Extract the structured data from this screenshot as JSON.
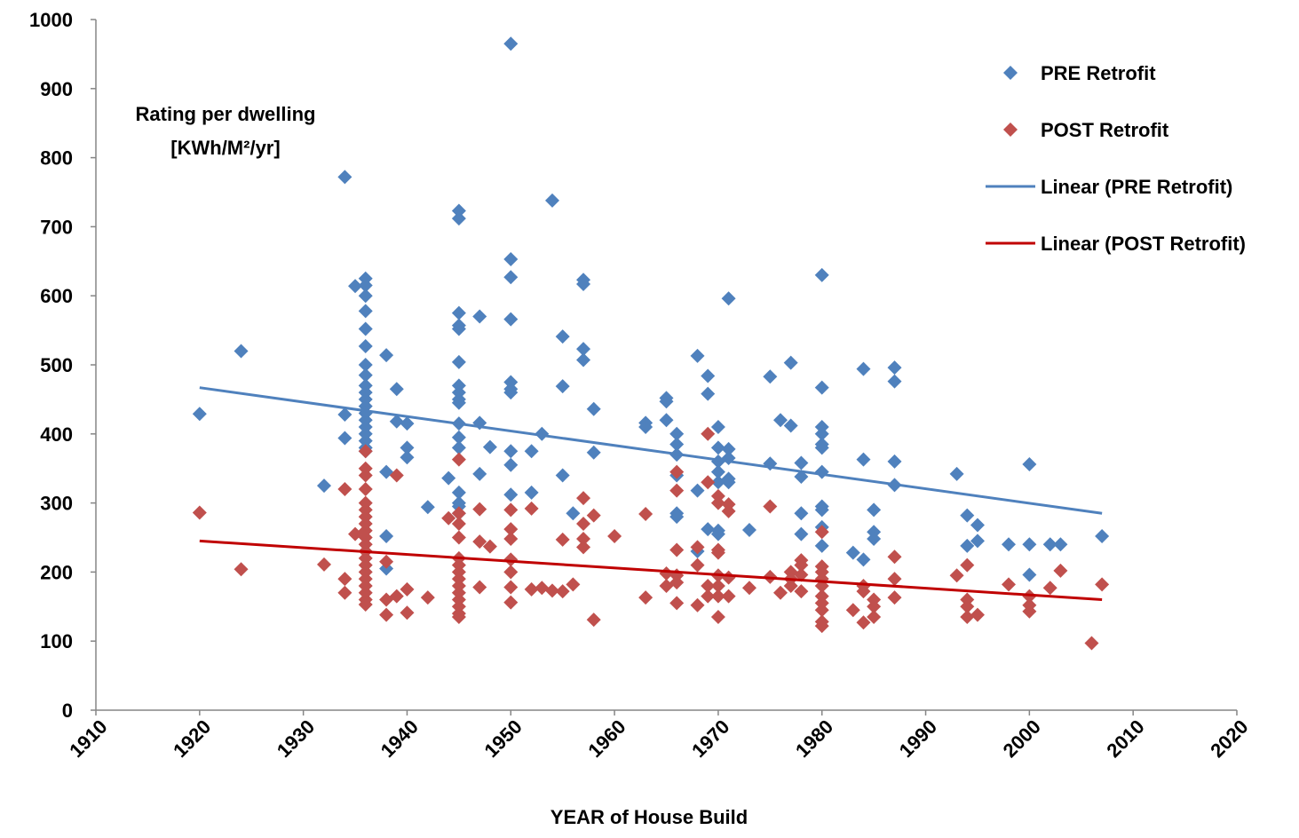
{
  "chart_data": {
    "type": "scatter",
    "xlabel": "YEAR of House Build",
    "ylabel": [
      "Rating  per dwelling",
      "[KWh/M²/yr]"
    ],
    "xlim": [
      1910,
      2020
    ],
    "xticks": [
      1910,
      1920,
      1930,
      1940,
      1950,
      1960,
      1970,
      1980,
      1990,
      2000,
      2010,
      2020
    ],
    "ylim": [
      0,
      1000
    ],
    "yticks": [
      0,
      100,
      200,
      300,
      400,
      500,
      600,
      700,
      800,
      900,
      1000
    ],
    "grid": false,
    "legend": "top-right",
    "series": [
      {
        "name": "PRE Retrofit",
        "color": "#4f81bd",
        "type": "scatter",
        "x": [
          1920,
          1924,
          1932,
          1934,
          1934,
          1934,
          1935,
          1936,
          1936,
          1936,
          1936,
          1936,
          1936,
          1936,
          1936,
          1936,
          1936,
          1936,
          1936,
          1936,
          1936,
          1936,
          1936,
          1936,
          1936,
          1936,
          1938,
          1938,
          1938,
          1938,
          1939,
          1939,
          1940,
          1940,
          1940,
          1942,
          1944,
          1945,
          1945,
          1945,
          1945,
          1945,
          1945,
          1945,
          1945,
          1945,
          1945,
          1945,
          1945,
          1945,
          1945,
          1945,
          1945,
          1945,
          1947,
          1947,
          1947,
          1948,
          1950,
          1950,
          1950,
          1950,
          1950,
          1950,
          1950,
          1950,
          1950,
          1950,
          1952,
          1952,
          1953,
          1954,
          1955,
          1955,
          1955,
          1956,
          1957,
          1957,
          1957,
          1957,
          1958,
          1958,
          1963,
          1963,
          1965,
          1965,
          1965,
          1966,
          1966,
          1966,
          1966,
          1966,
          1966,
          1968,
          1968,
          1968,
          1969,
          1969,
          1969,
          1970,
          1970,
          1970,
          1970,
          1970,
          1970,
          1970,
          1971,
          1971,
          1971,
          1971,
          1971,
          1973,
          1975,
          1975,
          1976,
          1977,
          1977,
          1978,
          1978,
          1978,
          1978,
          1980,
          1980,
          1980,
          1980,
          1980,
          1980,
          1980,
          1980,
          1980,
          1980,
          1980,
          1983,
          1984,
          1984,
          1984,
          1985,
          1985,
          1985,
          1987,
          1987,
          1987,
          1987,
          1993,
          1994,
          1994,
          1995,
          1995,
          1998,
          2000,
          2000,
          2000,
          2002,
          2003,
          2007
        ],
        "values": [
          429,
          520,
          325,
          772,
          428,
          394,
          614,
          625,
          615,
          600,
          578,
          552,
          527,
          500,
          485,
          470,
          460,
          450,
          440,
          430,
          420,
          410,
          400,
          390,
          380,
          375,
          514,
          345,
          252,
          205,
          465,
          418,
          415,
          380,
          366,
          294,
          336,
          723,
          712,
          575,
          557,
          552,
          504,
          470,
          460,
          450,
          445,
          415,
          395,
          380,
          315,
          300,
          295,
          285,
          570,
          416,
          342,
          381,
          965,
          653,
          627,
          566,
          475,
          465,
          460,
          375,
          355,
          312,
          375,
          315,
          400,
          738,
          541,
          469,
          340,
          285,
          623,
          617,
          523,
          507,
          436,
          373,
          416,
          410,
          452,
          447,
          420,
          400,
          385,
          370,
          340,
          285,
          280,
          513,
          318,
          230,
          484,
          458,
          262,
          410,
          380,
          360,
          345,
          330,
          260,
          255,
          596,
          378,
          365,
          335,
          330,
          261,
          483,
          357,
          420,
          503,
          412,
          358,
          338,
          285,
          255,
          630,
          467,
          410,
          400,
          385,
          380,
          345,
          295,
          290,
          265,
          238,
          228,
          494,
          363,
          218,
          290,
          258,
          248,
          496,
          476,
          360,
          326,
          342,
          282,
          238,
          268,
          245,
          240,
          356,
          240,
          196,
          240,
          240,
          252
        ]
      },
      {
        "name": "POST Retrofit",
        "color": "#c0504d",
        "type": "scatter",
        "x": [
          1920,
          1924,
          1932,
          1934,
          1934,
          1934,
          1935,
          1936,
          1936,
          1936,
          1936,
          1936,
          1936,
          1936,
          1936,
          1936,
          1936,
          1936,
          1936,
          1936,
          1936,
          1936,
          1936,
          1936,
          1936,
          1936,
          1936,
          1938,
          1938,
          1938,
          1939,
          1939,
          1940,
          1940,
          1942,
          1944,
          1945,
          1945,
          1945,
          1945,
          1945,
          1945,
          1945,
          1945,
          1945,
          1945,
          1945,
          1945,
          1945,
          1945,
          1947,
          1947,
          1947,
          1948,
          1950,
          1950,
          1950,
          1950,
          1950,
          1950,
          1950,
          1952,
          1952,
          1953,
          1954,
          1955,
          1955,
          1956,
          1957,
          1957,
          1957,
          1957,
          1958,
          1958,
          1960,
          1963,
          1963,
          1965,
          1965,
          1966,
          1966,
          1966,
          1966,
          1966,
          1966,
          1968,
          1968,
          1968,
          1969,
          1969,
          1969,
          1969,
          1970,
          1970,
          1970,
          1970,
          1970,
          1970,
          1970,
          1970,
          1971,
          1971,
          1971,
          1971,
          1973,
          1975,
          1975,
          1976,
          1977,
          1977,
          1977,
          1978,
          1978,
          1978,
          1978,
          1980,
          1980,
          1980,
          1980,
          1980,
          1980,
          1980,
          1980,
          1980,
          1980,
          1983,
          1984,
          1984,
          1984,
          1985,
          1985,
          1985,
          1987,
          1987,
          1987,
          1993,
          1994,
          1994,
          1994,
          1994,
          1995,
          1998,
          2000,
          2000,
          2000,
          2002,
          2003,
          2006,
          2007
        ],
        "values": [
          286,
          204,
          211,
          320,
          190,
          170,
          255,
          375,
          350,
          340,
          320,
          300,
          290,
          280,
          270,
          260,
          250,
          240,
          230,
          220,
          210,
          200,
          190,
          180,
          170,
          160,
          153,
          215,
          160,
          138,
          340,
          165,
          175,
          141,
          163,
          278,
          363,
          285,
          270,
          250,
          220,
          210,
          200,
          190,
          180,
          170,
          160,
          150,
          140,
          135,
          291,
          244,
          178,
          237,
          290,
          262,
          248,
          218,
          200,
          178,
          156,
          292,
          175,
          177,
          173,
          247,
          172,
          182,
          307,
          270,
          248,
          236,
          282,
          131,
          252,
          284,
          163,
          198,
          180,
          345,
          318,
          232,
          195,
          185,
          155,
          236,
          210,
          152,
          400,
          330,
          180,
          165,
          310,
          300,
          232,
          228,
          195,
          180,
          165,
          135,
          298,
          288,
          192,
          165,
          177,
          295,
          193,
          170,
          200,
          190,
          180,
          217,
          210,
          196,
          172,
          258,
          208,
          200,
          190,
          180,
          165,
          155,
          145,
          128,
          122,
          145,
          180,
          172,
          127,
          160,
          150,
          135,
          222,
          190,
          163,
          195,
          210,
          160,
          150,
          135,
          138,
          182,
          165,
          152,
          143,
          177,
          202,
          97,
          182
        ]
      },
      {
        "name": "Linear (PRE Retrofit)",
        "color": "#4f81bd",
        "type": "line",
        "x": [
          1920,
          2007
        ],
        "values": [
          467,
          285
        ]
      },
      {
        "name": "Linear (POST Retrofit)",
        "color": "#c00000",
        "type": "line",
        "x": [
          1920,
          2007
        ],
        "values": [
          245,
          160
        ]
      }
    ]
  }
}
